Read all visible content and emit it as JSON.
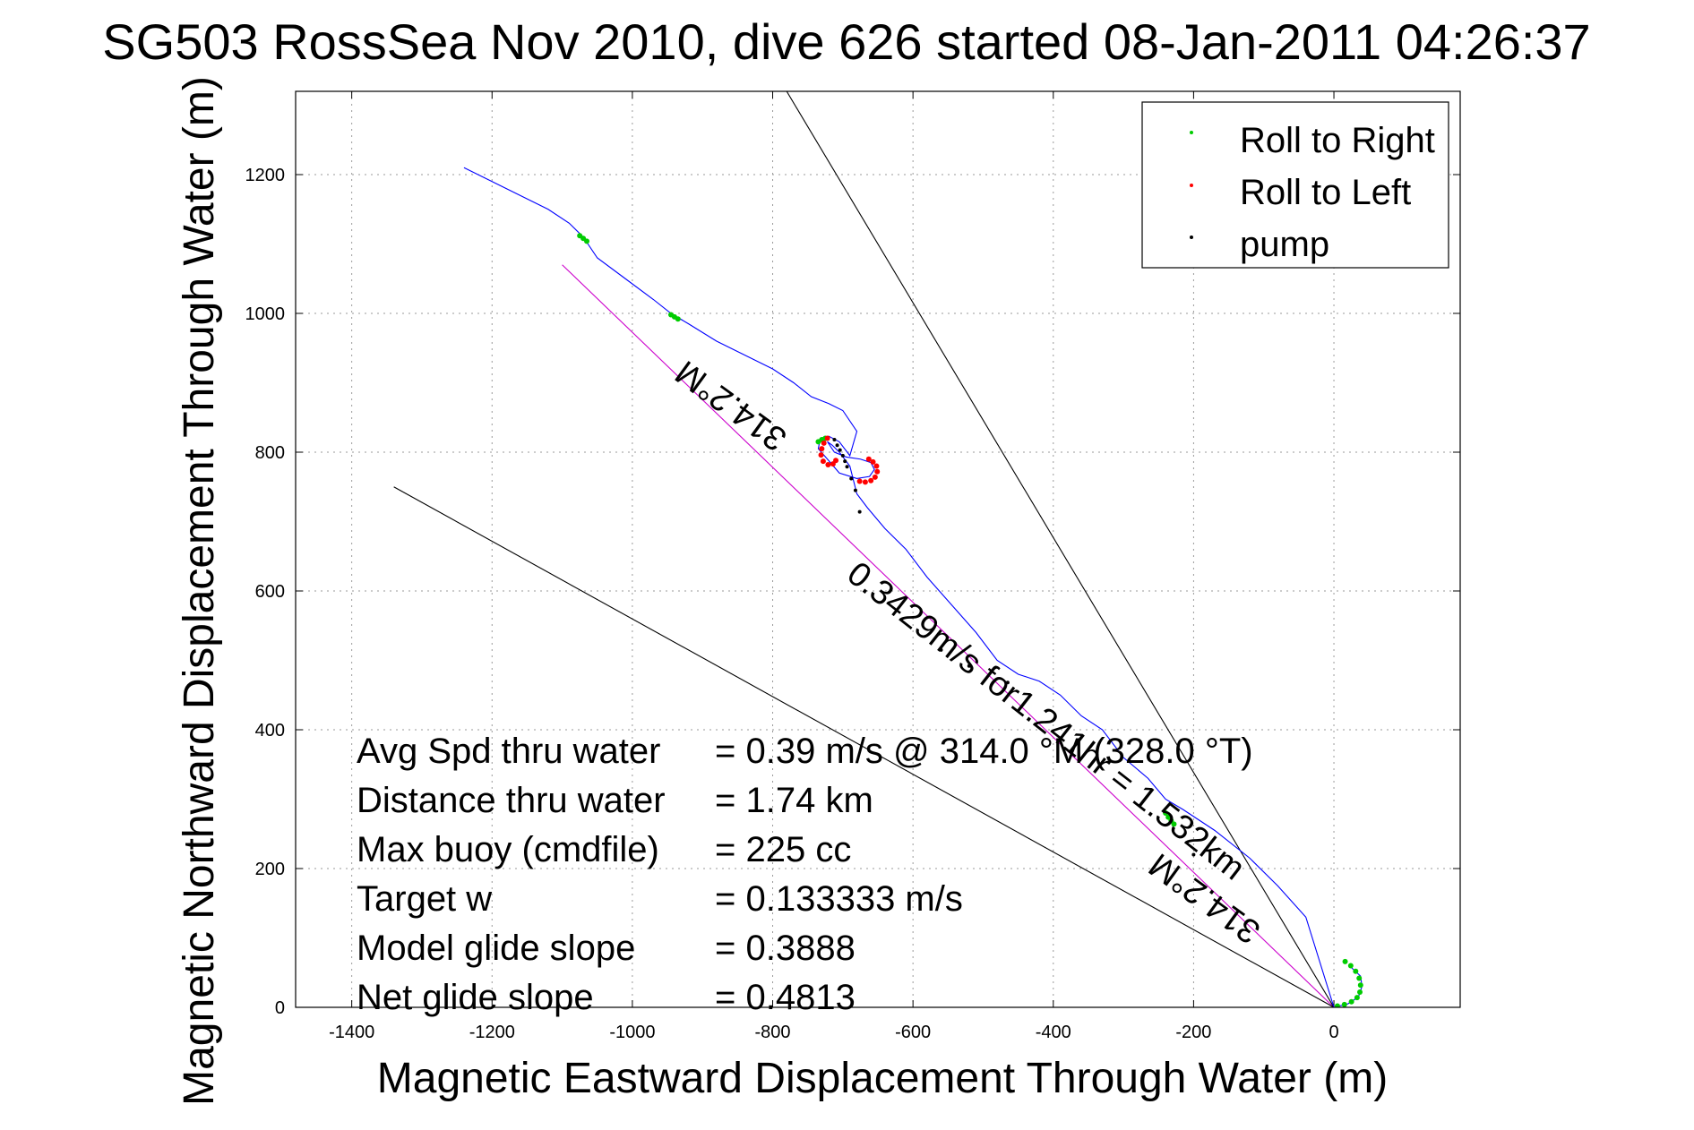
{
  "chart_data": {
    "type": "scatter",
    "title": "SG503 RossSea Nov 2010, dive 626 started 08-Jan-2011 04:26:37",
    "xlabel": "Magnetic Eastward Displacement Through Water (m)",
    "ylabel": "Magnetic Northward Displacement Through Water (m)",
    "xlim": [
      -1480,
      180
    ],
    "ylim": [
      0,
      1320
    ],
    "xticks": [
      -1400,
      -1200,
      -1000,
      -800,
      -600,
      -400,
      -200,
      0
    ],
    "yticks": [
      0,
      200,
      400,
      600,
      800,
      1000,
      1200
    ],
    "grid": true,
    "legend_position": "top-right",
    "legend": [
      {
        "label": "Roll to Right",
        "color": "#00cc00"
      },
      {
        "label": "Roll to Left",
        "color": "#ff0000"
      },
      {
        "label": "pump",
        "color": "#000000"
      }
    ],
    "series": [
      {
        "kind": "track",
        "color": "#0000ff",
        "x": [
          22,
          38,
          40,
          35,
          20,
          0,
          -40,
          -80,
          -120,
          -170,
          -215,
          -240,
          -265,
          -300,
          -330,
          -360,
          -390,
          -420,
          -450,
          -480,
          -510,
          -545,
          -580,
          -610,
          -640,
          -665,
          -680,
          -690,
          -705,
          -715,
          -722,
          -712,
          -695,
          -675,
          -660,
          -655,
          -662,
          -680,
          -705,
          -722,
          -735,
          -732,
          -720,
          -705,
          -690,
          -680,
          -700,
          -720,
          -745,
          -770,
          -800,
          -840,
          -880,
          -920,
          -945,
          -970,
          -1010,
          -1050,
          -1070,
          -1090,
          -1120,
          -1150,
          -1190,
          -1240
        ],
        "y": [
          60,
          45,
          30,
          15,
          5,
          0,
          130,
          175,
          215,
          255,
          285,
          300,
          330,
          360,
          400,
          420,
          450,
          470,
          480,
          500,
          540,
          580,
          620,
          660,
          690,
          720,
          740,
          780,
          800,
          810,
          815,
          800,
          793,
          790,
          785,
          775,
          765,
          762,
          770,
          790,
          805,
          820,
          823,
          815,
          795,
          830,
          860,
          870,
          880,
          900,
          920,
          940,
          960,
          985,
          1000,
          1020,
          1050,
          1080,
          1110,
          1130,
          1150,
          1165,
          1185,
          1210
        ]
      },
      {
        "kind": "roll_right",
        "color": "#00cc00",
        "x": [
          5,
          15,
          25,
          33,
          37,
          38,
          36,
          31,
          24,
          16,
          -240,
          -236,
          -232,
          -228,
          -945,
          -940,
          -935,
          -1075,
          -1070,
          -1065,
          -735,
          -730,
          -725
        ],
        "y": [
          2,
          4,
          8,
          14,
          22,
          32,
          42,
          52,
          60,
          66,
          280,
          274,
          269,
          264,
          998,
          995,
          992,
          1112,
          1108,
          1104,
          815,
          818,
          820
        ]
      },
      {
        "kind": "roll_left",
        "color": "#ff0000",
        "x": [
          -722,
          -727,
          -730,
          -731,
          -728,
          -721,
          -714,
          -710,
          -663,
          -657,
          -652,
          -651,
          -654,
          -660,
          -668,
          -676
        ],
        "y": [
          820,
          813,
          805,
          796,
          787,
          782,
          783,
          788,
          790,
          786,
          780,
          772,
          764,
          759,
          757,
          758
        ]
      },
      {
        "kind": "pump",
        "color": "#000000",
        "x": [
          -712,
          -708,
          -704,
          -700,
          -697,
          -694,
          -688,
          -682,
          -676,
          -560,
          -520,
          -465,
          -200
        ],
        "y": [
          818,
          810,
          803,
          795,
          787,
          779,
          762,
          745,
          714,
          515,
          492,
          468,
          220
        ]
      }
    ],
    "lines": [
      {
        "kind": "heading_line",
        "color": "#cc00cc",
        "x": [
          0,
          -1100
        ],
        "y": [
          0,
          1070
        ]
      },
      {
        "kind": "bound_line",
        "color": "#000000",
        "x": [
          0,
          -1340
        ],
        "y": [
          0,
          750
        ]
      },
      {
        "kind": "bound_line",
        "color": "#000000",
        "x": [
          0,
          -780
        ],
        "y": [
          0,
          1320
        ]
      }
    ],
    "annotations": [
      {
        "text": "314.2°M",
        "x": -850,
        "y": 880,
        "rotation_deg": 216
      },
      {
        "text": "0.3429m/s for1.241hr = 1.532km",
        "x": -420,
        "y": 400,
        "rotation_deg": 38
      },
      {
        "text": "314.2°M",
        "x": -175,
        "y": 170,
        "rotation_deg": 216
      }
    ],
    "stats": [
      {
        "label": "Avg Spd thru water",
        "value": "=  0.39 m/s @ 314.0 °M (328.0 °T)"
      },
      {
        "label": "Distance thru water",
        "value": "=  1.74 km"
      },
      {
        "label": "Max buoy (cmdfile)",
        "value": "= 225 cc"
      },
      {
        "label": "Target w",
        "value": "= 0.133333 m/s"
      },
      {
        "label": "Model glide slope",
        "value": "= 0.3888"
      },
      {
        "label": "Net glide slope",
        "value": "= 0.4813"
      }
    ]
  }
}
